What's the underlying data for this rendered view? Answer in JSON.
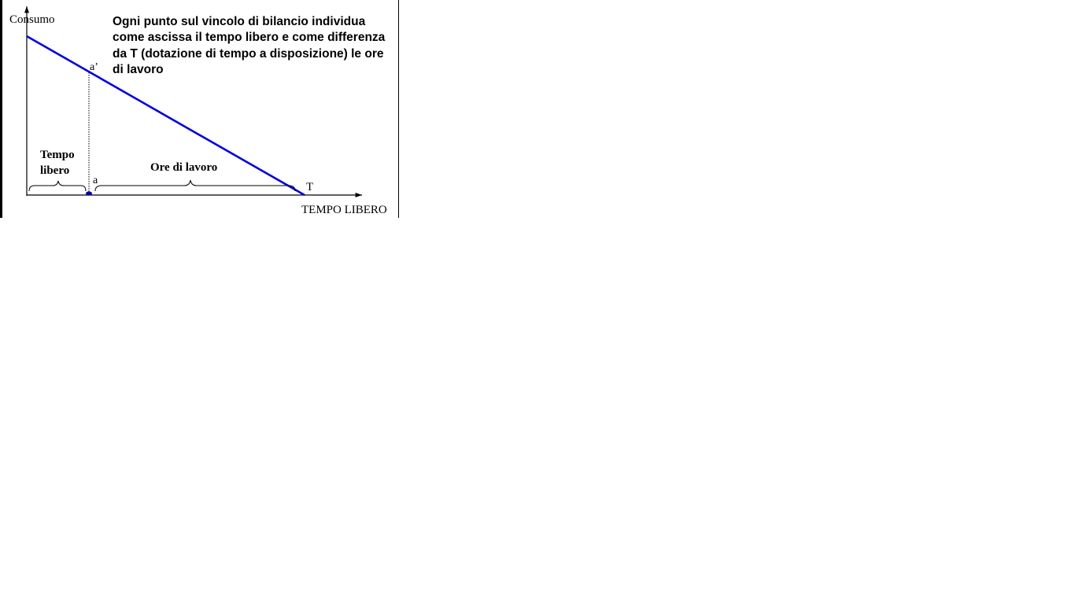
{
  "diagram": {
    "y_axis_label": "Consumo",
    "x_axis_label": "TEMPO LIBERO",
    "point_top_label": "a’",
    "point_bottom_label": "a",
    "endpoint_label": "T",
    "brace_left_label_line1": "Tempo",
    "brace_left_label_line2": "libero",
    "brace_right_label": "Ore di lavoro",
    "caption": "Ogni punto sul vincolo di bilancio individua come ascissa il tempo libero e come differenza da T (dotazione di tempo a disposizione) le ore di lavoro",
    "colors": {
      "budget_line": "#0000e0",
      "axes": "#000000",
      "point": "#0000a0"
    }
  }
}
